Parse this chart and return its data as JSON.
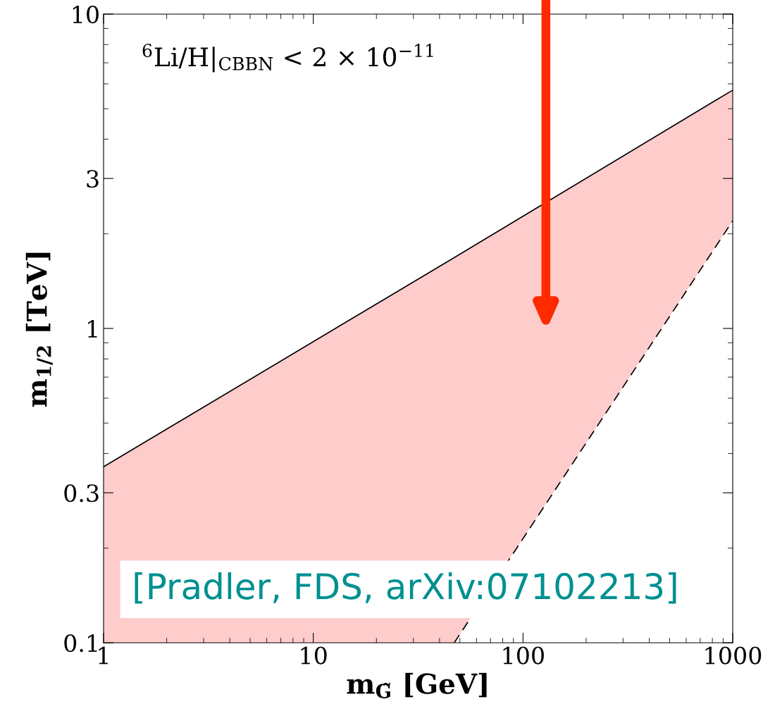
{
  "chart_data": {
    "type": "line",
    "xlabel": "m$_{G̃}$ [GeV]",
    "ylabel": "m$_{1/2}$ [TeV]",
    "log": "xy",
    "xlim": [
      1,
      1000
    ],
    "ylim": [
      0.1,
      10
    ],
    "xticks": [
      1,
      10,
      100,
      1000
    ],
    "yticks": [
      0.1,
      0.3,
      1,
      3,
      10
    ],
    "grid": false,
    "legend": false,
    "series": [
      {
        "color": "#000000",
        "line_style": "solid",
        "x": [
          1,
          47,
          1000
        ],
        "values": [
          0.363,
          1.68,
          5.73
        ],
        "lower": [
          0.1,
          0.1,
          2.2
        ],
        "upper": [
          0.363,
          1.68,
          5.73
        ]
      },
      {
        "color": "#000000",
        "line_style": "dashed",
        "x": [
          47,
          1000
        ],
        "values": [
          0.1,
          2.2
        ]
      }
    ],
    "annotations": [
      "$^{6}$Li/H|$_{CBBN}$ < 2 × 10$^{−11}$",
      "[Pradler, FDS, arXiv:07102213]"
    ]
  }
}
